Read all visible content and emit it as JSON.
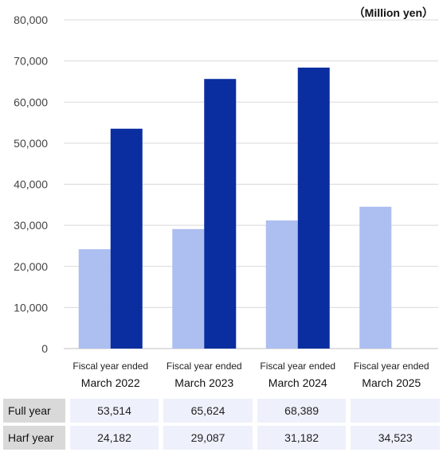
{
  "unit_label": "（Million yen）",
  "colors": {
    "full_year": "#0a2ea0",
    "half_year": "#adbef0",
    "grid": "#d9d9d9"
  },
  "chart_data": {
    "type": "bar",
    "categories": [
      [
        "Fiscal year ended",
        "March 2022"
      ],
      [
        "Fiscal year ended",
        "March 2023"
      ],
      [
        "Fiscal year ended",
        "March 2024"
      ],
      [
        "Fiscal year ended",
        "March 2025"
      ]
    ],
    "series": [
      {
        "name": "Harf year",
        "values": [
          24182,
          29087,
          31182,
          34523
        ]
      },
      {
        "name": "Full year",
        "values": [
          53514,
          65624,
          68389,
          null
        ]
      }
    ],
    "ylim": [
      0,
      80000
    ],
    "yticks": [
      "0",
      "10,000",
      "20,000",
      "30,000",
      "40,000",
      "50,000",
      "60,000",
      "70,000",
      "80,000"
    ],
    "grid": true
  },
  "table": {
    "rows": [
      {
        "label": "Full year",
        "values": [
          "53,514",
          "65,624",
          "68,389",
          ""
        ]
      },
      {
        "label": "Harf year",
        "values": [
          "24,182",
          "29,087",
          "31,182",
          "34,523"
        ]
      }
    ]
  }
}
